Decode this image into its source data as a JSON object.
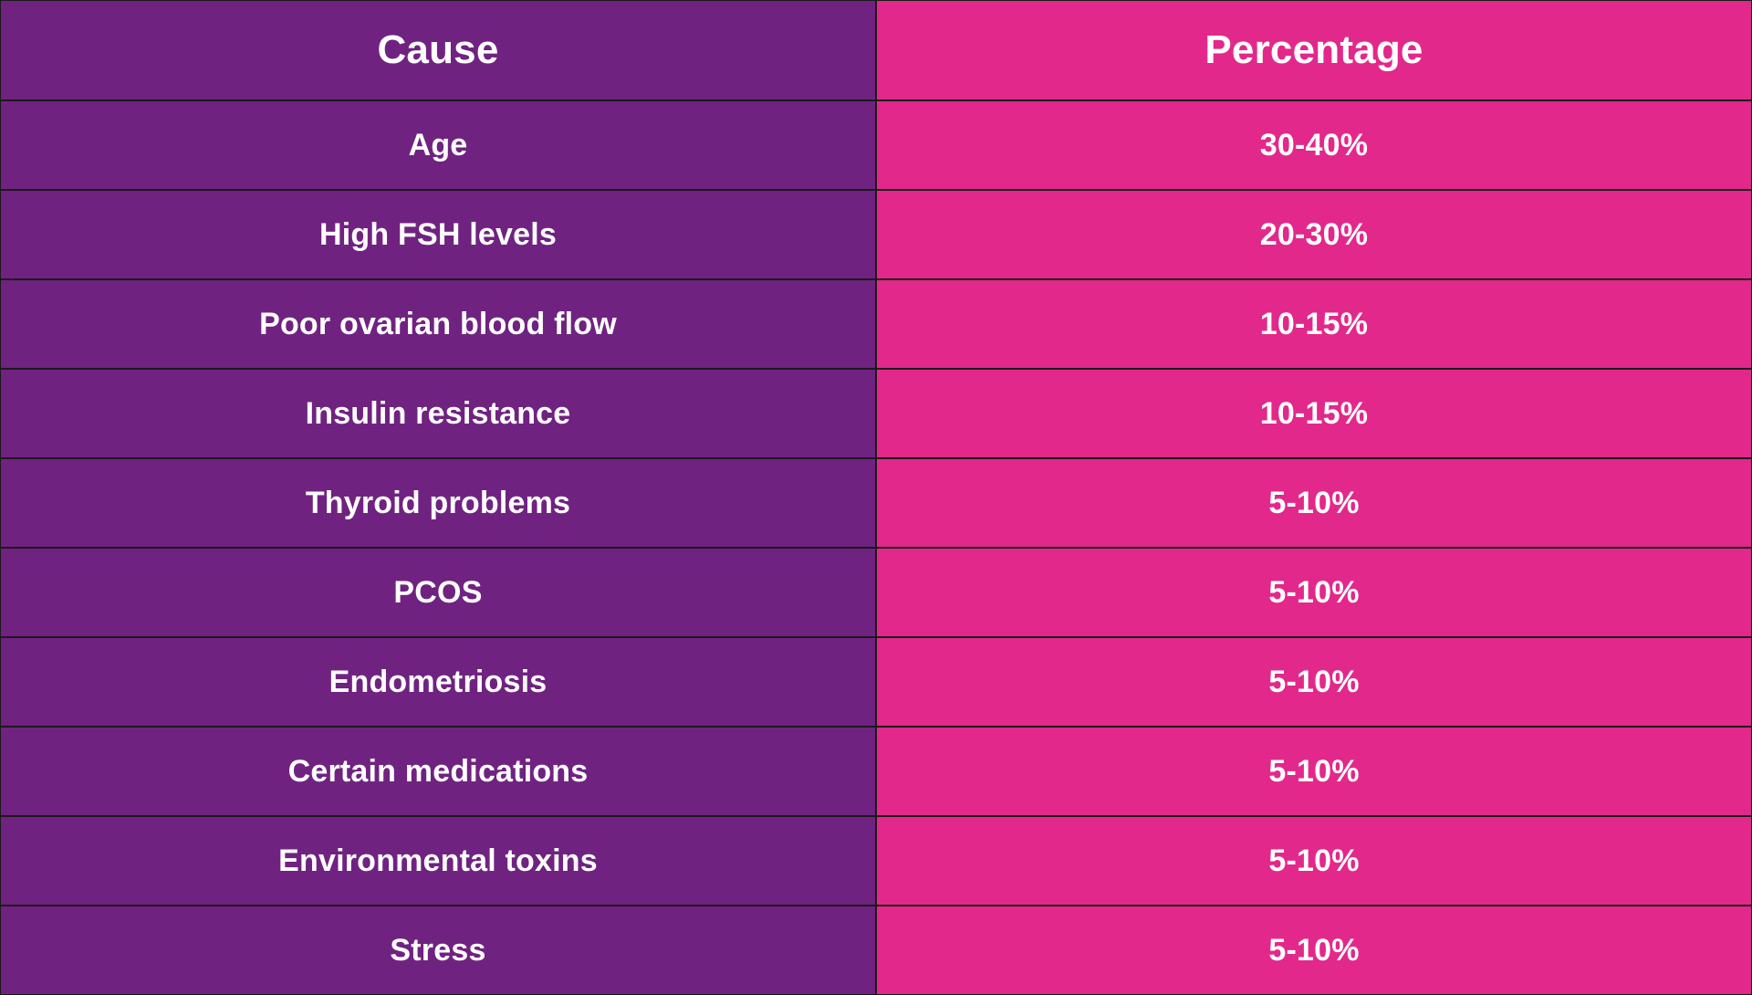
{
  "colors": {
    "cause_column": "#702281",
    "percentage_column": "#e2288b",
    "text": "#ffffff",
    "border": "#1a1a1a"
  },
  "table": {
    "headers": {
      "cause": "Cause",
      "percentage": "Percentage"
    },
    "rows": [
      {
        "cause": "Age",
        "percentage": "30-40%"
      },
      {
        "cause": "High FSH levels",
        "percentage": "20-30%"
      },
      {
        "cause": "Poor ovarian blood flow",
        "percentage": "10-15%"
      },
      {
        "cause": "Insulin resistance",
        "percentage": "10-15%"
      },
      {
        "cause": "Thyroid problems",
        "percentage": "5-10%"
      },
      {
        "cause": "PCOS",
        "percentage": "5-10%"
      },
      {
        "cause": "Endometriosis",
        "percentage": "5-10%"
      },
      {
        "cause": "Certain medications",
        "percentage": "5-10%"
      },
      {
        "cause": "Environmental toxins",
        "percentage": "5-10%"
      },
      {
        "cause": "Stress",
        "percentage": "5-10%"
      }
    ]
  }
}
